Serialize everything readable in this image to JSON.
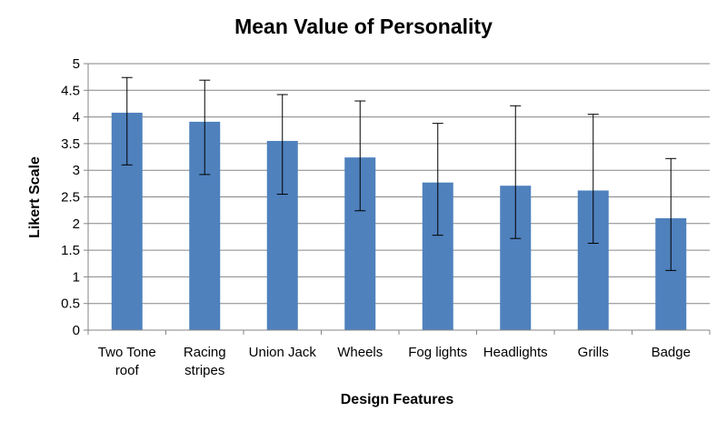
{
  "chart_data": {
    "type": "bar",
    "title": "Mean Value of Personality",
    "xlabel": "Design Features",
    "ylabel": "Likert Scale",
    "ylim": [
      0,
      5
    ],
    "yticks": [
      "0",
      "0.5",
      "1",
      "1.5",
      "2",
      "2.5",
      "3",
      "3.5",
      "4",
      "4.5",
      "5"
    ],
    "grid": true,
    "bar_color": "#4F81BD",
    "categories": [
      [
        "Two Tone",
        "roof"
      ],
      [
        "Racing",
        "stripes"
      ],
      [
        "Union Jack"
      ],
      [
        "Wheels"
      ],
      [
        "Fog lights"
      ],
      [
        "Headlights"
      ],
      [
        "Grills"
      ],
      [
        "Badge"
      ]
    ],
    "values": [
      4.08,
      3.91,
      3.55,
      3.24,
      2.77,
      2.71,
      2.62,
      2.1
    ],
    "error_low": [
      3.1,
      2.92,
      2.55,
      2.24,
      1.78,
      1.72,
      1.63,
      1.12
    ],
    "error_high": [
      4.74,
      4.69,
      4.42,
      4.3,
      3.88,
      4.21,
      4.05,
      3.22
    ]
  }
}
